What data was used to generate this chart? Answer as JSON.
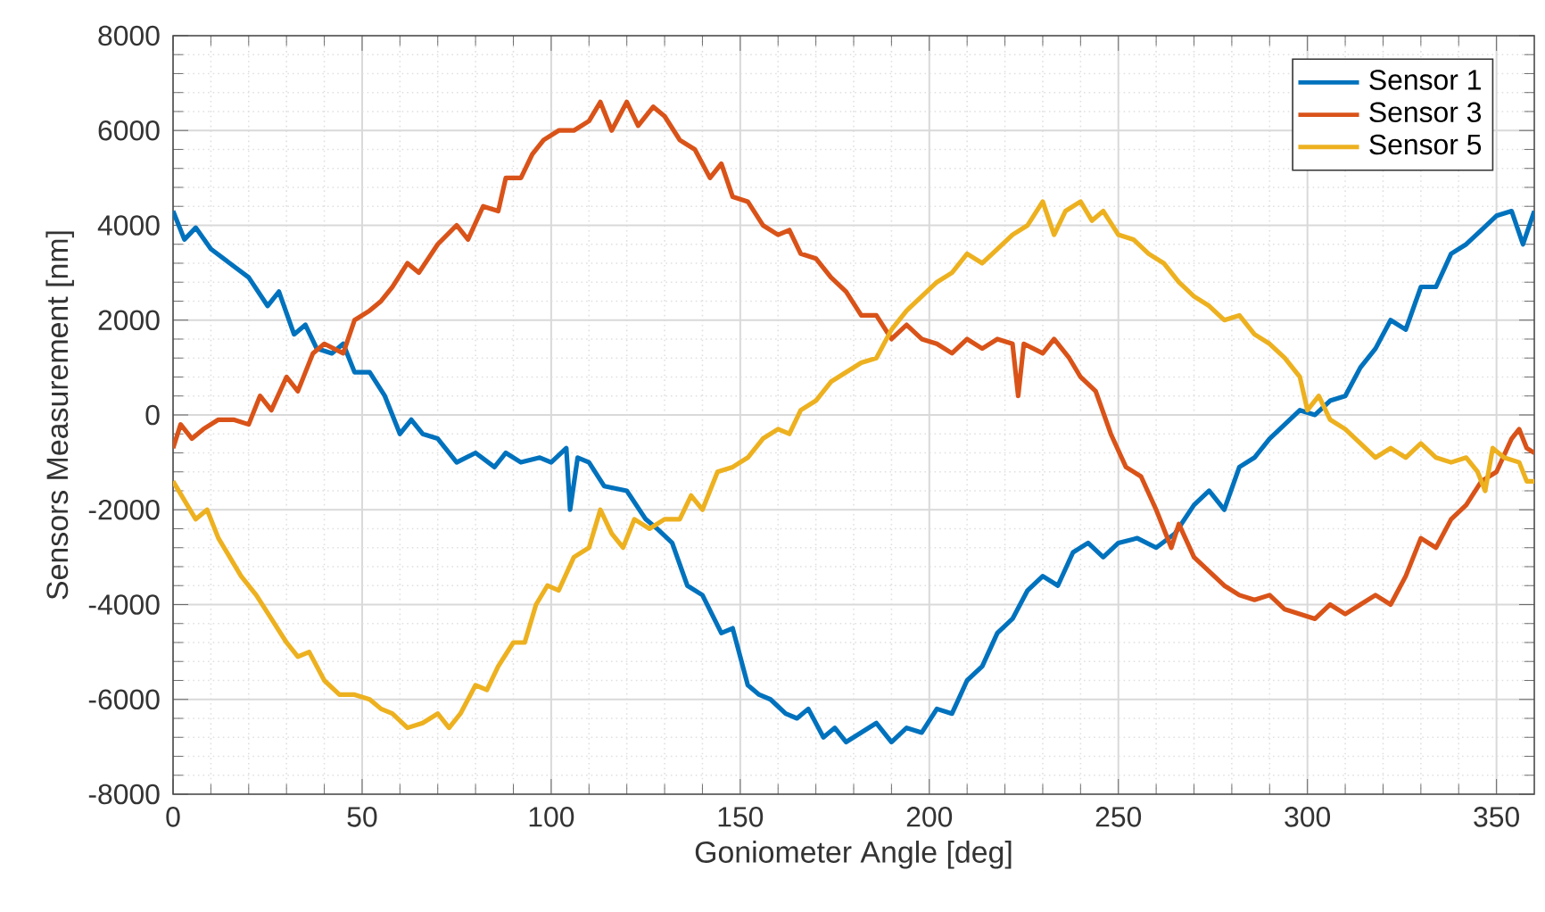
{
  "chart_data": {
    "type": "line",
    "xlabel": "Goniometer Angle [deg]",
    "ylabel": "Sensors Measurement [nm]",
    "xlim": [
      0,
      360
    ],
    "xticks": [
      0,
      50,
      100,
      150,
      200,
      250,
      300,
      350
    ],
    "ylim": [
      -8000,
      8000
    ],
    "yticks": [
      -8000,
      -6000,
      -4000,
      -2000,
      0,
      2000,
      4000,
      6000,
      8000
    ],
    "grid": true,
    "legend": "top right",
    "marker": "none",
    "line_style": "solid",
    "series": [
      {
        "name": "Sensor 1",
        "color": "#0072bd",
        "x": [
          0,
          3,
          6,
          10,
          15,
          20,
          25,
          28,
          32,
          35,
          38,
          42,
          45,
          48,
          52,
          56,
          60,
          63,
          66,
          70,
          75,
          80,
          85,
          88,
          92,
          97,
          100,
          104,
          105,
          107,
          110,
          114,
          120,
          125,
          128,
          132,
          136,
          140,
          145,
          148,
          152,
          155,
          158,
          162,
          165,
          168,
          172,
          175,
          178,
          182,
          186,
          190,
          194,
          198,
          202,
          206,
          210,
          214,
          218,
          222,
          226,
          230,
          234,
          238,
          242,
          246,
          250,
          255,
          260,
          265,
          270,
          274,
          278,
          282,
          286,
          290,
          294,
          298,
          302,
          306,
          310,
          314,
          318,
          322,
          326,
          330,
          334,
          338,
          342,
          346,
          350,
          354,
          357,
          360
        ],
        "values": [
          4300,
          3700,
          3950,
          3500,
          3200,
          2900,
          2300,
          2600,
          1700,
          1900,
          1400,
          1300,
          1500,
          900,
          900,
          400,
          -400,
          -100,
          -400,
          -500,
          -1000,
          -800,
          -1100,
          -800,
          -1000,
          -900,
          -1000,
          -700,
          -2000,
          -900,
          -1000,
          -1500,
          -1600,
          -2200,
          -2400,
          -2700,
          -3600,
          -3800,
          -4600,
          -4500,
          -5700,
          -5900,
          -6000,
          -6300,
          -6400,
          -6200,
          -6800,
          -6600,
          -6900,
          -6700,
          -6500,
          -6900,
          -6600,
          -6700,
          -6200,
          -6300,
          -5600,
          -5300,
          -4600,
          -4300,
          -3700,
          -3400,
          -3600,
          -2900,
          -2700,
          -3000,
          -2700,
          -2600,
          -2800,
          -2500,
          -1900,
          -1600,
          -2000,
          -1100,
          -900,
          -500,
          -200,
          100,
          0,
          300,
          400,
          1000,
          1400,
          2000,
          1800,
          2700,
          2700,
          3400,
          3600,
          3900,
          4200,
          4300,
          3600,
          4300
        ]
      },
      {
        "name": "Sensor 3",
        "color": "#d95319",
        "x": [
          0,
          2,
          5,
          8,
          12,
          16,
          20,
          23,
          26,
          30,
          33,
          37,
          40,
          45,
          48,
          52,
          55,
          58,
          62,
          65,
          70,
          75,
          78,
          82,
          86,
          88,
          92,
          95,
          98,
          102,
          106,
          110,
          113,
          116,
          120,
          123,
          127,
          130,
          134,
          138,
          142,
          145,
          148,
          152,
          156,
          160,
          163,
          166,
          170,
          174,
          178,
          182,
          186,
          190,
          194,
          198,
          202,
          206,
          210,
          214,
          218,
          222,
          223.5,
          225,
          230,
          233,
          237,
          240,
          244,
          248,
          252,
          256,
          260,
          264,
          266,
          270,
          274,
          278,
          282,
          286,
          290,
          294,
          298,
          302,
          306,
          310,
          314,
          318,
          322,
          326,
          330,
          334,
          338,
          342,
          346,
          350,
          354,
          356,
          358,
          360
        ],
        "values": [
          -700,
          -200,
          -500,
          -300,
          -100,
          -100,
          -200,
          400,
          100,
          800,
          500,
          1300,
          1500,
          1300,
          2000,
          2200,
          2400,
          2700,
          3200,
          3000,
          3600,
          4000,
          3700,
          4400,
          4300,
          5000,
          5000,
          5500,
          5800,
          6000,
          6000,
          6200,
          6600,
          6000,
          6600,
          6100,
          6500,
          6300,
          5800,
          5600,
          5000,
          5300,
          4600,
          4500,
          4000,
          3800,
          3900,
          3400,
          3300,
          2900,
          2600,
          2100,
          2100,
          1600,
          1900,
          1600,
          1500,
          1300,
          1600,
          1400,
          1600,
          1500,
          400,
          1500,
          1300,
          1600,
          1200,
          800,
          500,
          -400,
          -1100,
          -1300,
          -2000,
          -2800,
          -2300,
          -3000,
          -3300,
          -3600,
          -3800,
          -3900,
          -3800,
          -4100,
          -4200,
          -4300,
          -4000,
          -4200,
          -4000,
          -3800,
          -4000,
          -3400,
          -2600,
          -2800,
          -2200,
          -1900,
          -1400,
          -1200,
          -500,
          -300,
          -700,
          -800
        ]
      },
      {
        "name": "Sensor 5",
        "color": "#edb120",
        "x": [
          0,
          3,
          6,
          9,
          12,
          15,
          18,
          22,
          26,
          30,
          33,
          36,
          40,
          44,
          48,
          52,
          55,
          58,
          62,
          66,
          70,
          73,
          76,
          80,
          83,
          86,
          90,
          93,
          96,
          99,
          102,
          106,
          110,
          113,
          116,
          119,
          122,
          126,
          130,
          134,
          137,
          140,
          144,
          148,
          152,
          156,
          160,
          163,
          166,
          170,
          174,
          178,
          182,
          186,
          190,
          194,
          198,
          202,
          206,
          210,
          214,
          218,
          222,
          226,
          230,
          233,
          236,
          240,
          243,
          246,
          250,
          254,
          258,
          262,
          266,
          270,
          274,
          278,
          282,
          286,
          290,
          294,
          298,
          300,
          303,
          306,
          310,
          314,
          318,
          322,
          326,
          330,
          334,
          338,
          342,
          345,
          347,
          349,
          352,
          356,
          358,
          360
        ],
        "values": [
          -1400,
          -1800,
          -2200,
          -2000,
          -2600,
          -3000,
          -3400,
          -3800,
          -4300,
          -4800,
          -5100,
          -5000,
          -5600,
          -5900,
          -5900,
          -6000,
          -6200,
          -6300,
          -6600,
          -6500,
          -6300,
          -6600,
          -6300,
          -5700,
          -5800,
          -5300,
          -4800,
          -4800,
          -4000,
          -3600,
          -3700,
          -3000,
          -2800,
          -2000,
          -2500,
          -2800,
          -2200,
          -2400,
          -2200,
          -2200,
          -1700,
          -2000,
          -1200,
          -1100,
          -900,
          -500,
          -300,
          -400,
          100,
          300,
          700,
          900,
          1100,
          1200,
          1800,
          2200,
          2500,
          2800,
          3000,
          3400,
          3200,
          3500,
          3800,
          4000,
          4500,
          3800,
          4300,
          4500,
          4100,
          4300,
          3800,
          3700,
          3400,
          3200,
          2800,
          2500,
          2300,
          2000,
          2100,
          1700,
          1500,
          1200,
          800,
          100,
          400,
          -100,
          -300,
          -600,
          -900,
          -700,
          -900,
          -600,
          -900,
          -1000,
          -900,
          -1200,
          -1600,
          -700,
          -900,
          -1000,
          -1400,
          -1400
        ]
      }
    ]
  }
}
